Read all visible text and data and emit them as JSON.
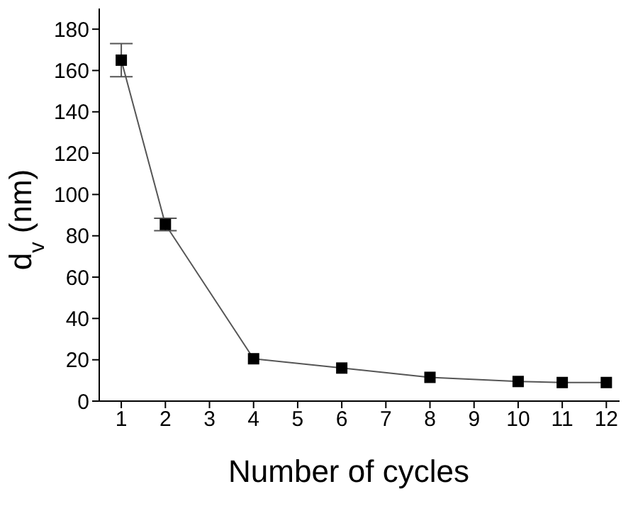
{
  "chart_data": {
    "type": "line",
    "xlabel": "Number of cycles",
    "ylabel": "d$_{v}$ (nm)",
    "x": [
      1,
      2,
      4,
      6,
      8,
      10,
      11,
      12
    ],
    "series": [
      {
        "color": "#000000",
        "values": [
          165,
          85.5,
          20.5,
          16,
          11.5,
          9.5,
          9,
          9
        ],
        "errors": [
          8,
          3,
          null,
          null,
          null,
          null,
          null,
          null
        ]
      }
    ],
    "xlim": [
      0.5,
      12.3
    ],
    "xticks": [
      1,
      2,
      3,
      4,
      5,
      6,
      7,
      8,
      9,
      10,
      11,
      12
    ],
    "ylim": [
      0,
      190
    ],
    "yticks": [
      0,
      20,
      40,
      60,
      80,
      100,
      120,
      140,
      160,
      180
    ],
    "grid": false,
    "legend": false,
    "marker": "square",
    "line_style": "solid"
  }
}
